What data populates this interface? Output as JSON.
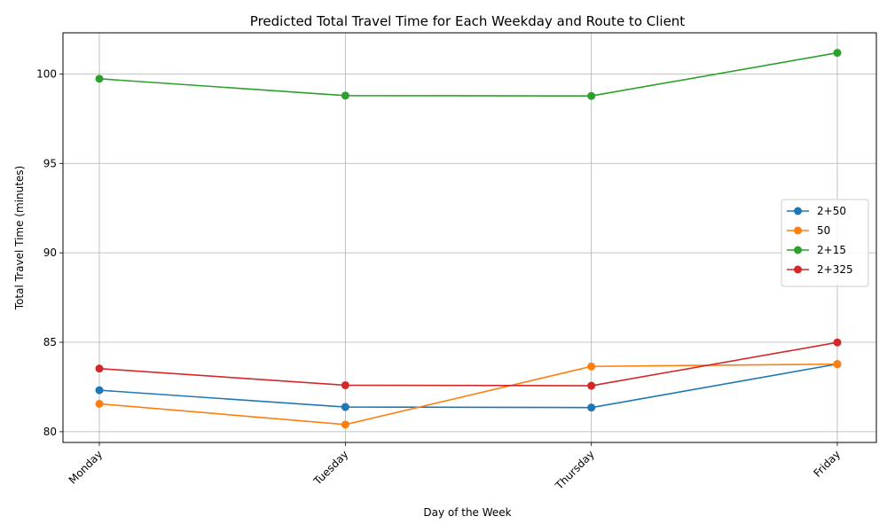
{
  "chart_data": {
    "type": "line",
    "title": "Predicted Total Travel Time for Each Weekday and Route to Client",
    "xlabel": "Day of the Week",
    "ylabel": "Total Travel Time (minutes)",
    "categories": [
      "Monday",
      "Tuesday",
      "Thursday",
      "Friday"
    ],
    "ylim": [
      79.4,
      102.3
    ],
    "yticks": [
      80,
      85,
      90,
      95,
      100
    ],
    "grid": true,
    "legend_position": "center-right",
    "series": [
      {
        "name": "2+50",
        "color": "#1f77b4",
        "values": [
          82.32,
          81.38,
          81.35,
          83.78
        ]
      },
      {
        "name": "50",
        "color": "#ff7f0e",
        "values": [
          81.56,
          80.4,
          83.65,
          83.78
        ]
      },
      {
        "name": "2+15",
        "color": "#2ca02c",
        "values": [
          99.73,
          98.79,
          98.77,
          101.18
        ]
      },
      {
        "name": "2+325",
        "color": "#d62728",
        "values": [
          83.53,
          82.6,
          82.57,
          84.99
        ]
      }
    ]
  }
}
